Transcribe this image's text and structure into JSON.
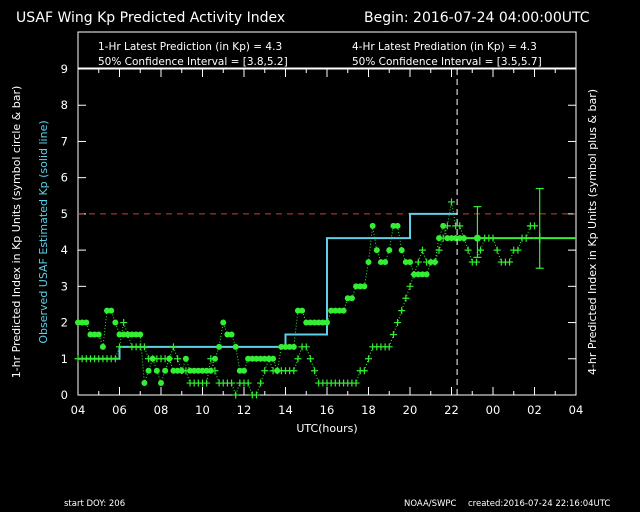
{
  "header": {
    "title": "USAF Wing Kp Predicted Activity Index",
    "begin": "Begin: 2016-07-24 04:00:00UTC"
  },
  "info": {
    "one_hr_prediction": "1-Hr Latest Prediction (in Kp) = 4.3",
    "one_hr_ci": "50% Confidence Interval   =  [3.8,5.2]",
    "four_hr_prediction": "4-Hr Latest Prediation (in Kp) = 4.3",
    "four_hr_ci": "50% Confidence Interval   =  [3.5,5.7]"
  },
  "footer": {
    "start_doy": "start DOY:  206",
    "source": "NOAA/SWPC",
    "created": "created:2016-07-24 22:16:04UTC"
  },
  "chart_data": {
    "type": "line",
    "xlabel": "UTC(hours)",
    "ylabel_left": "1-hr Predicted Index in Kp Units (symbol circle & bar)",
    "ylabel_left2": "Observed USAF Estimated Kp (solid line)",
    "ylabel_right": "4-hr Predicted Index in Kp Units (symbol plus & bar)",
    "x_ticks": [
      "04",
      "06",
      "08",
      "10",
      "12",
      "14",
      "16",
      "18",
      "20",
      "22",
      "00",
      "02",
      "04"
    ],
    "y_ticks": [
      "0",
      "1",
      "2",
      "3",
      "4",
      "5",
      "6",
      "7",
      "8",
      "9"
    ],
    "xlim": [
      0,
      24
    ],
    "ylim": [
      0,
      9
    ],
    "threshold": 5,
    "now_marker": 18.27,
    "colors": {
      "observed": "#5fd0e8",
      "prediction": "#33ee33",
      "threshold": "#d04030",
      "now": "#ffffff",
      "axes": "#ffffff"
    },
    "series": [
      {
        "name": "Observed USAF Estimated Kp",
        "style": "step",
        "x": [
          0,
          2,
          2,
          4,
          4,
          8,
          8,
          10,
          10,
          12,
          12,
          14,
          14,
          16,
          16,
          18.27
        ],
        "y": [
          1,
          1,
          1.33,
          1.33,
          1.33,
          1.33,
          1.33,
          1.33,
          1.67,
          1.67,
          4.33,
          4.33,
          4.33,
          4.33,
          5,
          5
        ],
        "forecast_x": [
          18.27,
          24
        ],
        "forecast_y": [
          4.33,
          4.33
        ]
      },
      {
        "name": "1-hr Predicted Index",
        "marker": "circle",
        "x": [
          0.0,
          0.2,
          0.4,
          0.6,
          0.8,
          1.0,
          1.2,
          1.4,
          1.6,
          1.8,
          2.0,
          2.2,
          2.4,
          2.6,
          2.8,
          3.0,
          3.2,
          3.4,
          3.6,
          3.8,
          4.0,
          4.2,
          4.4,
          4.6,
          4.8,
          5.0,
          5.2,
          5.4,
          5.6,
          5.8,
          6.0,
          6.2,
          6.4,
          6.6,
          6.8,
          7.0,
          7.2,
          7.4,
          7.6,
          7.8,
          8.0,
          8.2,
          8.4,
          8.6,
          8.8,
          9.0,
          9.2,
          9.4,
          9.6,
          9.8,
          10.0,
          10.2,
          10.4,
          10.6,
          10.8,
          11.0,
          11.2,
          11.4,
          11.6,
          11.8,
          12.0,
          12.2,
          12.4,
          12.6,
          12.8,
          13.0,
          13.2,
          13.4,
          13.6,
          13.8,
          14.0,
          14.2,
          14.4,
          14.6,
          14.8,
          15.0,
          15.2,
          15.4,
          15.6,
          15.8,
          16.0,
          16.2,
          16.4,
          16.6,
          16.8,
          17.0,
          17.2,
          17.4,
          17.6,
          17.8,
          18.0,
          18.2,
          18.4,
          18.6
        ],
        "y": [
          2.0,
          2.0,
          2.0,
          1.67,
          1.67,
          1.67,
          1.33,
          2.33,
          2.33,
          2.0,
          1.67,
          1.67,
          1.67,
          1.67,
          1.67,
          1.67,
          0.33,
          0.67,
          1.0,
          0.67,
          0.33,
          0.67,
          1.0,
          0.67,
          0.67,
          0.67,
          1.0,
          0.67,
          0.67,
          0.67,
          0.67,
          0.67,
          0.67,
          1.0,
          1.33,
          2.0,
          1.67,
          1.67,
          1.33,
          0.67,
          0.67,
          1.0,
          1.0,
          1.0,
          1.0,
          1.0,
          1.0,
          1.0,
          0.67,
          1.33,
          1.33,
          1.33,
          1.33,
          2.33,
          2.33,
          2.0,
          2.0,
          2.0,
          2.0,
          2.0,
          2.0,
          2.33,
          2.33,
          2.33,
          2.33,
          2.67,
          2.67,
          3.0,
          3.0,
          3.0,
          3.67,
          4.67,
          4.0,
          3.67,
          3.67,
          4.0,
          4.67,
          4.67,
          4.0,
          3.67,
          3.67,
          3.33,
          3.33,
          3.33,
          3.33,
          3.67,
          3.67,
          4.33,
          4.67,
          4.33,
          4.33,
          4.33,
          4.33,
          4.33
        ],
        "latest": {
          "x": 19.25,
          "y": 4.33,
          "ci": [
            3.8,
            5.2
          ]
        }
      },
      {
        "name": "4-hr Predicted Index",
        "marker": "plus",
        "x": [
          0.0,
          0.2,
          0.4,
          0.6,
          0.8,
          1.0,
          1.2,
          1.4,
          1.6,
          1.8,
          2.0,
          2.2,
          2.4,
          2.6,
          2.8,
          3.0,
          3.2,
          3.4,
          3.6,
          3.8,
          4.0,
          4.2,
          4.4,
          4.6,
          4.8,
          5.0,
          5.2,
          5.4,
          5.6,
          5.8,
          6.0,
          6.2,
          6.4,
          6.6,
          6.8,
          7.0,
          7.2,
          7.4,
          7.6,
          7.8,
          8.0,
          8.2,
          8.4,
          8.6,
          8.8,
          9.0,
          9.2,
          9.4,
          9.6,
          9.8,
          10.0,
          10.2,
          10.4,
          10.6,
          10.8,
          11.0,
          11.2,
          11.4,
          11.6,
          11.8,
          12.0,
          12.2,
          12.4,
          12.6,
          12.8,
          13.0,
          13.2,
          13.4,
          13.6,
          13.8,
          14.0,
          14.2,
          14.4,
          14.6,
          14.8,
          15.0,
          15.2,
          15.4,
          15.6,
          15.8,
          16.0,
          16.2,
          16.4,
          16.6,
          16.8,
          17.0,
          17.2,
          17.4,
          17.6,
          17.8,
          18.0,
          18.2,
          18.4,
          18.6,
          18.8,
          19.0,
          19.2,
          19.4,
          19.6,
          19.8,
          20.0,
          20.2,
          20.4,
          20.6,
          20.8,
          21.0,
          21.2,
          21.4,
          21.6,
          21.8,
          22.0
        ],
        "y": [
          1.0,
          1.0,
          1.0,
          1.0,
          1.0,
          1.0,
          1.0,
          1.0,
          1.0,
          1.0,
          1.33,
          2.0,
          1.67,
          1.33,
          1.33,
          1.33,
          1.33,
          1.0,
          1.0,
          1.0,
          1.0,
          1.0,
          1.0,
          1.33,
          1.0,
          0.67,
          0.67,
          0.33,
          0.33,
          0.33,
          0.33,
          0.33,
          1.0,
          0.67,
          0.33,
          0.33,
          0.33,
          0.33,
          0.0,
          0.33,
          0.33,
          0.33,
          0.0,
          0.0,
          0.33,
          0.67,
          1.0,
          0.67,
          0.67,
          0.67,
          0.67,
          0.67,
          0.67,
          1.0,
          1.33,
          1.33,
          1.0,
          0.67,
          0.33,
          0.33,
          0.33,
          0.33,
          0.33,
          0.33,
          0.33,
          0.33,
          0.33,
          0.33,
          0.67,
          0.67,
          1.0,
          1.33,
          1.33,
          1.33,
          1.33,
          1.33,
          1.67,
          2.0,
          2.33,
          2.67,
          3.0,
          3.33,
          3.67,
          4.0,
          3.67,
          3.67,
          3.67,
          4.0,
          4.33,
          4.67,
          5.33,
          4.67,
          4.67,
          4.33,
          4.0,
          3.67,
          3.67,
          4.0,
          4.33,
          4.33,
          4.33,
          4.0,
          3.67,
          3.67,
          3.67,
          4.0,
          4.0,
          4.33,
          4.33,
          4.67,
          4.67
        ],
        "latest": {
          "x": 22.25,
          "y": 4.33,
          "ci": [
            3.5,
            5.7
          ]
        }
      }
    ]
  }
}
